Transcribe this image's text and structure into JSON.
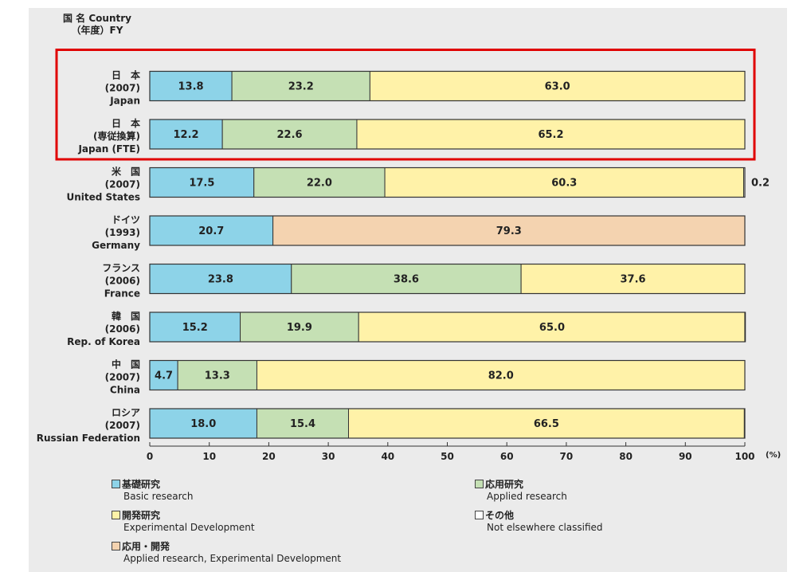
{
  "header": {
    "line1": "国 名 Country",
    "line2": "（年度）FY"
  },
  "x_unit": "(%)",
  "colors": {
    "basic": "#8dd3e8",
    "applied": "#c5e0b4",
    "experimental": "#fff2a8",
    "other": "#ffffff",
    "applied_experimental": "#f4d3b0",
    "highlight": "#e00000"
  },
  "legend": {
    "basic": {
      "jp": "基礎研究",
      "en": "Basic research"
    },
    "applied": {
      "jp": "応用研究",
      "en": "Applied research"
    },
    "experimental": {
      "jp": "開発研究",
      "en": "Experimental Development"
    },
    "other": {
      "jp": "その他",
      "en": "Not elsewhere classified"
    },
    "applied_experimental": {
      "jp": "応用・開発",
      "en": "Applied research, Experimental Development"
    }
  },
  "chart_data": {
    "type": "bar",
    "orientation": "horizontal",
    "stacked": true,
    "xlim": [
      0,
      100
    ],
    "xticks": [
      0,
      10,
      20,
      30,
      40,
      50,
      60,
      70,
      80,
      90,
      100
    ],
    "xunit": "(%)",
    "categories": [
      {
        "line1": "日　本",
        "line2": "(2007)",
        "line3": "Japan"
      },
      {
        "line1": "日　本",
        "line2": "(専従換算)",
        "line3": "Japan (FTE)"
      },
      {
        "line1": "米　国",
        "line2": "(2007)",
        "line3": "United States"
      },
      {
        "line1": "ドイツ",
        "line2": "(1993)",
        "line3": "Germany"
      },
      {
        "line1": "フランス",
        "line2": "(2006)",
        "line3": "France"
      },
      {
        "line1": "韓　国",
        "line2": "(2006)",
        "line3": "Rep. of Korea"
      },
      {
        "line1": "中　国",
        "line2": "(2007)",
        "line3": "China"
      },
      {
        "line1": "ロシア",
        "line2": "(2007)",
        "line3": "Russian Federation"
      }
    ],
    "series": [
      {
        "name": "基礎研究 Basic research",
        "key": "basic",
        "values": [
          13.8,
          12.2,
          17.5,
          20.7,
          23.8,
          15.2,
          4.7,
          18.0
        ]
      },
      {
        "name": "応用研究 Applied research",
        "key": "applied",
        "values": [
          23.2,
          22.6,
          22.0,
          null,
          38.6,
          19.9,
          13.3,
          15.4
        ]
      },
      {
        "name": "応用・開発 Applied research, Experimental Development",
        "key": "applied_experimental",
        "values": [
          null,
          null,
          null,
          79.3,
          null,
          null,
          null,
          null
        ]
      },
      {
        "name": "開発研究 Experimental Development",
        "key": "experimental",
        "values": [
          63.0,
          65.2,
          60.3,
          null,
          37.6,
          65.0,
          82.0,
          66.5
        ]
      },
      {
        "name": "その他 Not elsewhere classified",
        "key": "other",
        "values": [
          null,
          null,
          0.2,
          null,
          null,
          null,
          null,
          null
        ]
      }
    ],
    "outside_labels": [
      {
        "category_index": 2,
        "series": "other",
        "text": "0.2"
      }
    ],
    "highlight": {
      "category_indices": [
        0,
        1
      ],
      "color": "#e00000"
    }
  }
}
